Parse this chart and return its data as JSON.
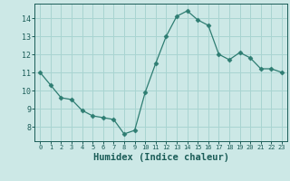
{
  "x": [
    0,
    1,
    2,
    3,
    4,
    5,
    6,
    7,
    8,
    9,
    10,
    11,
    12,
    13,
    14,
    15,
    16,
    17,
    18,
    19,
    20,
    21,
    22,
    23
  ],
  "y": [
    11.0,
    10.3,
    9.6,
    9.5,
    8.9,
    8.6,
    8.5,
    8.4,
    7.6,
    7.8,
    9.9,
    11.5,
    13.0,
    14.1,
    14.4,
    13.9,
    13.6,
    12.0,
    11.7,
    12.1,
    11.8,
    11.2,
    11.2,
    11.0
  ],
  "line_color": "#2e7d72",
  "marker": "D",
  "marker_size": 2.5,
  "bg_color": "#cce8e6",
  "grid_color": "#a8d4d1",
  "xlabel": "Humidex (Indice chaleur)",
  "xlabel_fontsize": 7.5,
  "tick_label_color": "#1a5c57",
  "xlim": [
    -0.5,
    23.5
  ],
  "ylim": [
    7.2,
    14.8
  ],
  "yticks": [
    8,
    9,
    10,
    11,
    12,
    13,
    14
  ],
  "xticks": [
    0,
    1,
    2,
    3,
    4,
    5,
    6,
    7,
    8,
    9,
    10,
    11,
    12,
    13,
    14,
    15,
    16,
    17,
    18,
    19,
    20,
    21,
    22,
    23
  ]
}
